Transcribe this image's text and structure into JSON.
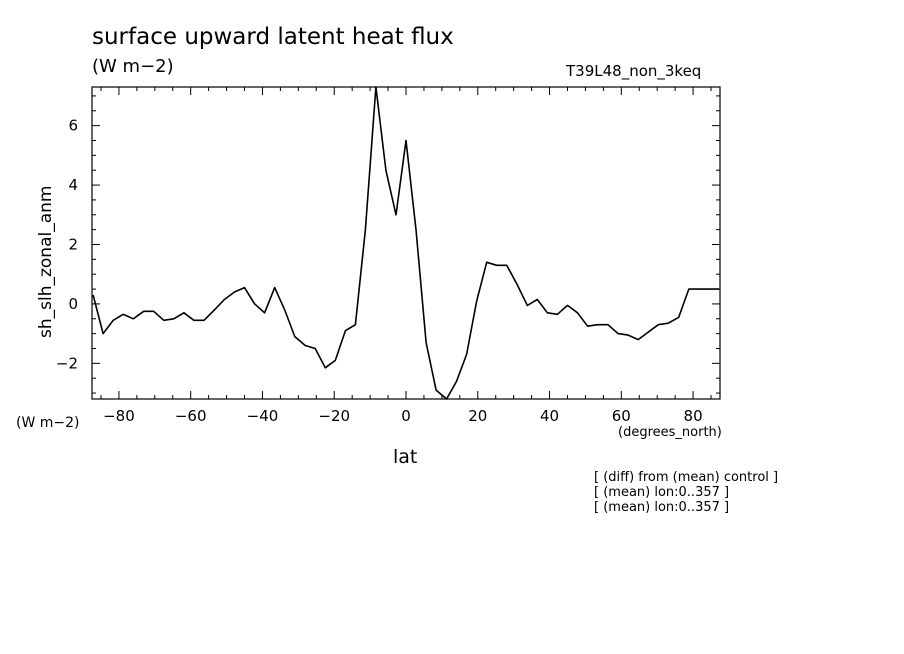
{
  "chart_data": {
    "type": "line",
    "title": "surface upward latent heat flux",
    "units": "(W m−2)",
    "experiment": "T39L48_non_3keq",
    "xlabel": "lat",
    "xunits": "(degrees_north)",
    "ylabel": "sh_slh_zonal_anm",
    "yunits": "(W m−2)",
    "xlim": [
      -87.5,
      87.5
    ],
    "ylim": [
      -3.2,
      7.3
    ],
    "xticks": [
      -80,
      -60,
      -40,
      -20,
      0,
      20,
      40,
      60,
      80
    ],
    "xtick_labels": [
      "−80",
      "−60",
      "−40",
      "−20",
      "0",
      "20",
      "40",
      "60",
      "80"
    ],
    "yticks": [
      -2,
      0,
      2,
      4,
      6
    ],
    "ytick_labels": [
      "−2",
      "0",
      "2",
      "4",
      "6"
    ],
    "grid": false,
    "notes": [
      "[ (diff) from (mean) control ]",
      "[ (mean) lon:0..357 ]",
      "[ (mean) lon:0..357 ]"
    ],
    "series": [
      {
        "x": [
          -87.2,
          -84.4,
          -81.6,
          -78.8,
          -76.0,
          -73.1,
          -70.3,
          -67.5,
          -64.7,
          -61.9,
          -59.1,
          -56.3,
          -53.4,
          -50.6,
          -47.8,
          -45.0,
          -42.2,
          -39.4,
          -36.6,
          -33.8,
          -31.0,
          -28.1,
          -25.3,
          -22.5,
          -19.7,
          -16.9,
          -14.1,
          -11.3,
          -8.4,
          -5.6,
          -2.8,
          0.0,
          2.8,
          5.6,
          8.4,
          11.3,
          14.1,
          16.9,
          19.7,
          22.5,
          25.3,
          28.1,
          31.0,
          33.8,
          36.6,
          39.4,
          42.2,
          45.0,
          47.8,
          50.6,
          53.4,
          56.3,
          59.1,
          61.9,
          64.7,
          67.5,
          70.3,
          73.1,
          76.0,
          78.8,
          81.6,
          84.4,
          87.2
        ],
        "values": [
          0.3,
          -1.0,
          -0.55,
          -0.35,
          -0.5,
          -0.25,
          -0.25,
          -0.55,
          -0.5,
          -0.3,
          -0.55,
          -0.55,
          -0.2,
          0.15,
          0.4,
          0.55,
          0.0,
          -0.3,
          0.55,
          -0.2,
          -1.1,
          -1.4,
          -1.5,
          -2.15,
          -1.9,
          -0.9,
          -0.7,
          2.5,
          7.3,
          4.5,
          3.0,
          5.5,
          2.5,
          -1.3,
          -2.9,
          -3.2,
          -2.6,
          -1.7,
          0.1,
          1.4,
          1.3,
          1.3,
          0.65,
          -0.05,
          0.15,
          -0.3,
          -0.35,
          -0.05,
          -0.3,
          -0.75,
          -0.7,
          -0.7,
          -1.0,
          -1.05,
          -1.2,
          -0.95,
          -0.7,
          -0.65,
          -0.45,
          0.5,
          0.5,
          0.5,
          0.5
        ]
      }
    ]
  }
}
